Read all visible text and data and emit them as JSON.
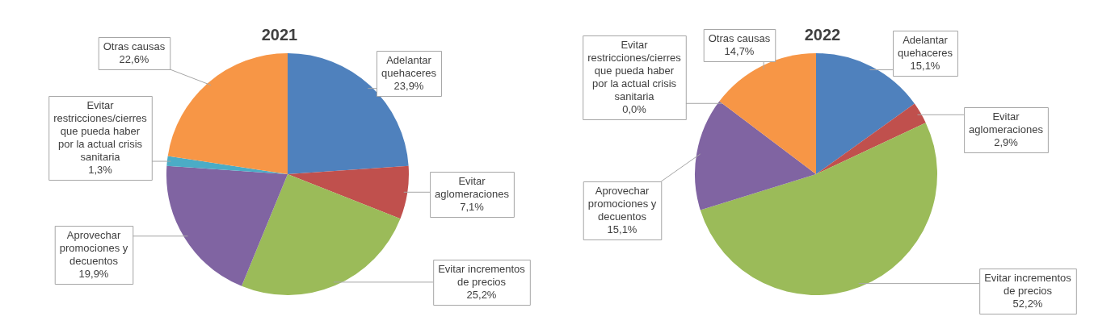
{
  "chart_data": [
    {
      "type": "pie",
      "title": "2021",
      "legend": false,
      "categories": [
        "Adelantar quehaceres",
        "Evitar aglomeraciones",
        "Evitar incrementos de precios",
        "Aprovechar promociones y decuentos",
        "Evitar restricciones/cierres que pueda haber por la actual crisis sanitaria",
        "Otras causas"
      ],
      "values": [
        23.9,
        7.1,
        25.2,
        19.9,
        1.3,
        22.6
      ],
      "value_labels": [
        "23,9%",
        "7,1%",
        "25,2%",
        "19,9%",
        "1,3%",
        "22,6%"
      ],
      "colors": [
        "#4f81bd",
        "#c0504d",
        "#9bbb59",
        "#8064a2",
        "#4bacc6",
        "#f79646"
      ]
    },
    {
      "type": "pie",
      "title": "2022",
      "legend": false,
      "categories": [
        "Adelantar quehaceres",
        "Evitar aglomeraciones",
        "Evitar incrementos de precios",
        "Aprovechar promociones y decuentos",
        "Evitar restricciones/cierres que pueda haber por la actual crisis sanitaria",
        "Otras causas"
      ],
      "values": [
        15.1,
        2.9,
        52.2,
        15.1,
        0.0,
        14.7
      ],
      "value_labels": [
        "15,1%",
        "2,9%",
        "52,2%",
        "15,1%",
        "0,0%",
        "14,7%"
      ],
      "colors": [
        "#4f81bd",
        "#c0504d",
        "#9bbb59",
        "#8064a2",
        "#4bacc6",
        "#f79646"
      ]
    }
  ]
}
